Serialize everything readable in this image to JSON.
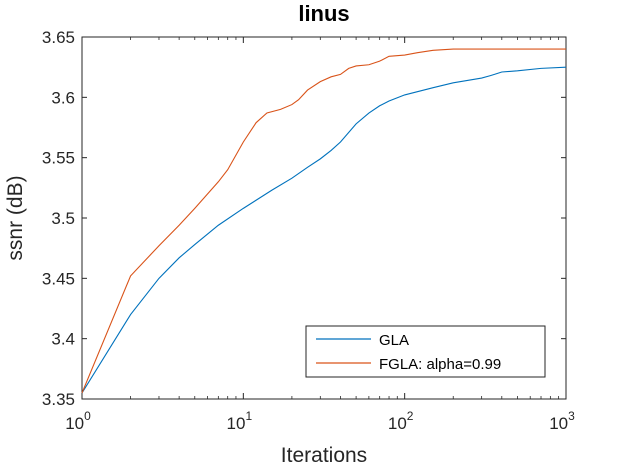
{
  "chart_data": {
    "type": "line",
    "title": "linus",
    "xlabel": "Iterations",
    "ylabel": "ssnr (dB)",
    "xscale": "log",
    "xlim": [
      1,
      1000
    ],
    "ylim": [
      3.35,
      3.65
    ],
    "grid": false,
    "legend_position": "bottom-right",
    "x_ticks": [
      {
        "value": 1,
        "base": "10",
        "exp": "0"
      },
      {
        "value": 10,
        "base": "10",
        "exp": "1"
      },
      {
        "value": 100,
        "base": "10",
        "exp": "2"
      },
      {
        "value": 1000,
        "base": "10",
        "exp": "3"
      }
    ],
    "y_ticks": [
      {
        "value": 3.35,
        "label": "3.35"
      },
      {
        "value": 3.4,
        "label": "3.4"
      },
      {
        "value": 3.45,
        "label": "3.45"
      },
      {
        "value": 3.5,
        "label": "3.5"
      },
      {
        "value": 3.55,
        "label": "3.55"
      },
      {
        "value": 3.6,
        "label": "3.6"
      },
      {
        "value": 3.65,
        "label": "3.65"
      }
    ],
    "series": [
      {
        "name": "GLA",
        "color": "#0072BD",
        "x": [
          1,
          2,
          3,
          4,
          5,
          7,
          10,
          15,
          20,
          25,
          30,
          35,
          40,
          50,
          60,
          70,
          80,
          100,
          150,
          200,
          300,
          340,
          360,
          400,
          500,
          700,
          1000
        ],
        "y": [
          3.355,
          3.42,
          3.45,
          3.467,
          3.478,
          3.494,
          3.508,
          3.523,
          3.533,
          3.542,
          3.549,
          3.556,
          3.563,
          3.578,
          3.587,
          3.593,
          3.597,
          3.602,
          3.608,
          3.612,
          3.616,
          3.618,
          3.619,
          3.621,
          3.622,
          3.624,
          3.625
        ]
      },
      {
        "name": "FGLA: alpha=0.99",
        "color": "#D95319",
        "x": [
          1,
          2,
          3,
          4,
          5,
          7,
          8,
          10,
          12,
          14,
          17,
          20,
          22,
          25,
          30,
          35,
          40,
          45,
          50,
          60,
          70,
          80,
          100,
          120,
          150,
          200,
          300,
          500,
          1000
        ],
        "y": [
          3.355,
          3.452,
          3.477,
          3.494,
          3.508,
          3.53,
          3.54,
          3.563,
          3.579,
          3.587,
          3.59,
          3.594,
          3.598,
          3.606,
          3.613,
          3.617,
          3.619,
          3.624,
          3.626,
          3.627,
          3.63,
          3.634,
          3.635,
          3.637,
          3.639,
          3.64,
          3.64,
          3.64,
          3.64
        ]
      }
    ]
  }
}
